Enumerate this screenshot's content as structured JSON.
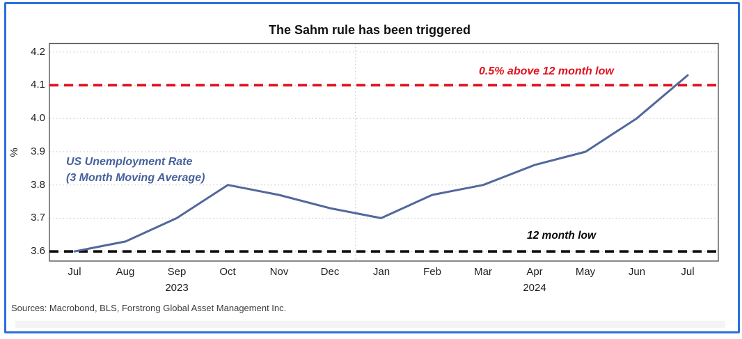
{
  "figure": {
    "frame_color": "#2A6FDD",
    "background": "#FFFFFF"
  },
  "chart_data": {
    "type": "line",
    "title": "The Sahm rule has been triggered",
    "xlabel": "",
    "ylabel": "%",
    "x": [
      "Jul",
      "Aug",
      "Sep",
      "Oct",
      "Nov",
      "Dec",
      "Jan",
      "Feb",
      "Mar",
      "Apr",
      "May",
      "Jun",
      "Jul"
    ],
    "year_labels": [
      {
        "text": "2023",
        "under_index": 2
      },
      {
        "text": "2024",
        "under_index": 9
      }
    ],
    "series": [
      {
        "name": "US Unemployment Rate (3 Month Moving Average)",
        "color": "#52689B",
        "values": [
          3.6,
          3.63,
          3.7,
          3.8,
          3.77,
          3.73,
          3.7,
          3.77,
          3.8,
          3.86,
          3.9,
          4.0,
          4.13
        ]
      }
    ],
    "yticks": [
      {
        "value": 4.2,
        "label": "4.2"
      },
      {
        "value": 4.1,
        "label": "4.1"
      },
      {
        "value": 4.0,
        "label": "4.0"
      },
      {
        "value": 3.9,
        "label": "3.9"
      },
      {
        "value": 3.8,
        "label": "3.8"
      },
      {
        "value": 3.7,
        "label": "3.7"
      },
      {
        "value": 3.6,
        "label": "3.6"
      }
    ],
    "ylim": [
      3.575,
      4.228
    ],
    "grid": "horizontal dotted gridlines at each tick; one vertical dotted divider at the 2023/2024 year boundary",
    "legend_position": "none (in-plot text annotations)",
    "reference_lines": [
      {
        "value": 4.1,
        "label": "0.5% above 12 month low",
        "color": "#E1131F",
        "style": "dashed"
      },
      {
        "value": 3.6,
        "label": "12 month low",
        "color": "#0A0A0A",
        "style": "dashed"
      }
    ]
  },
  "annotations": {
    "series_label_line1": "US Unemployment Rate",
    "series_label_line2": "(3 Month Moving Average)",
    "upper_threshold_label": "0.5% above 12 month low",
    "lower_threshold_label": "12 month low"
  },
  "footer": {
    "sources": "Sources: Macrobond, BLS, Forstrong Global Asset Management Inc."
  }
}
